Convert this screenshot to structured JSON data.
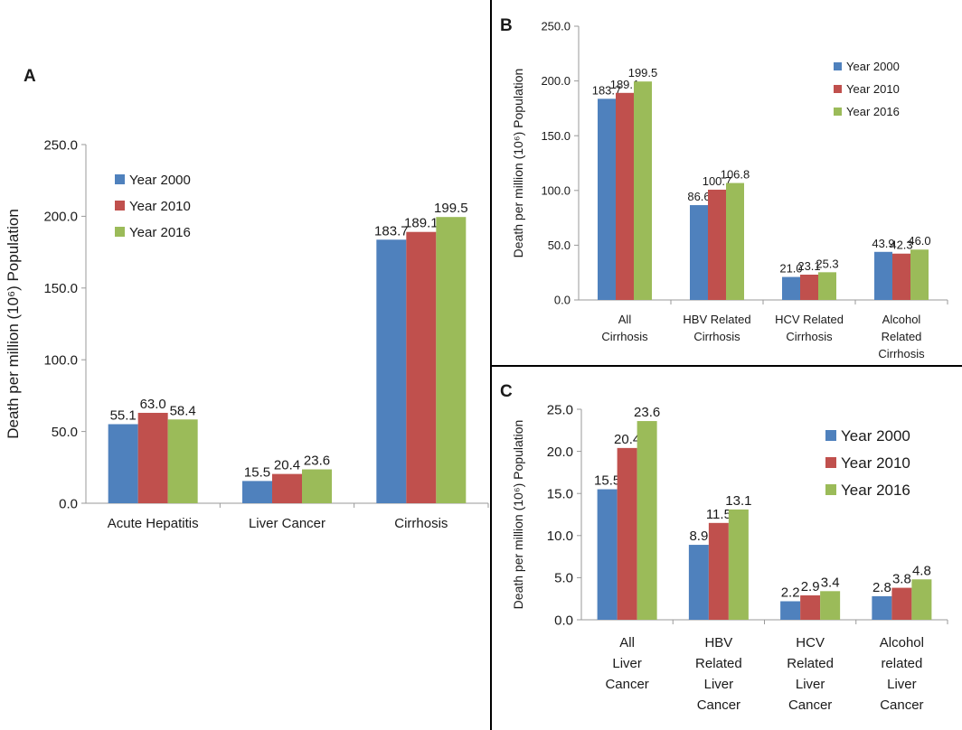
{
  "colors": {
    "year_2000": "#4F81BD",
    "year_2010": "#C0504D",
    "year_2016": "#9BBB59"
  },
  "panels": [
    {
      "letter": "A",
      "chart_data": {
        "type": "bar",
        "ylabel": "Death per million (10⁶) Population",
        "ylim": [
          0,
          250
        ],
        "yticks": [
          "0.0",
          "50.0",
          "100.0",
          "150.0",
          "200.0",
          "250.0"
        ],
        "categories": [
          "Acute Hepatitis",
          "Liver Cancer",
          "Cirrhosis"
        ],
        "series": [
          {
            "name": "Year 2000",
            "values": [
              55.1,
              15.5,
              183.7
            ],
            "labels": [
              "55.1",
              "15.5",
              "183.7"
            ]
          },
          {
            "name": "Year 2010",
            "values": [
              63.0,
              20.4,
              189.1
            ],
            "labels": [
              "63.0",
              "20.4",
              "189.1"
            ]
          },
          {
            "name": "Year 2016",
            "values": [
              58.4,
              23.6,
              199.5
            ],
            "labels": [
              "58.4",
              "23.6",
              "199.5"
            ]
          }
        ],
        "legend": "top-left",
        "grid": false
      }
    },
    {
      "letter": "B",
      "chart_data": {
        "type": "bar",
        "ylabel": "Death per million (10⁶) Population",
        "ylim": [
          0,
          250
        ],
        "yticks": [
          "0.0",
          "50.0",
          "100.0",
          "150.0",
          "200.0",
          "250.0"
        ],
        "categories": [
          "All Cirrhosis",
          "HBV Related Cirrhosis",
          "HCV Related Cirrhosis",
          "Alcohol Related Cirrhosis"
        ],
        "series": [
          {
            "name": "Year 2000",
            "values": [
              183.7,
              86.6,
              21.0,
              43.9
            ],
            "labels": [
              "183.7",
              "86.6",
              "21.0",
              "43.9"
            ]
          },
          {
            "name": "Year 2010",
            "values": [
              189.1,
              100.7,
              23.1,
              42.3
            ],
            "labels": [
              "189.1",
              "100.7",
              "23.1",
              "42.3"
            ]
          },
          {
            "name": "Year 2016",
            "values": [
              199.5,
              106.8,
              25.3,
              46.0
            ],
            "labels": [
              "199.5",
              "106.8",
              "25.3",
              "46.0"
            ]
          }
        ],
        "legend": "top-right",
        "grid": false
      }
    },
    {
      "letter": "C",
      "chart_data": {
        "type": "bar",
        "ylabel": "Death per million (10⁶) Population",
        "ylim": [
          0,
          25
        ],
        "yticks": [
          "0.0",
          "5.0",
          "10.0",
          "15.0",
          "20.0",
          "25.0"
        ],
        "categories": [
          "All Liver Cancer",
          "HBV Related Liver Cancer",
          "HCV Related Liver Cancer",
          "Alcohol related Liver Cancer"
        ],
        "series": [
          {
            "name": "Year 2000",
            "values": [
              15.5,
              8.9,
              2.2,
              2.8
            ],
            "labels": [
              "15.5",
              "8.9",
              "2.2",
              "2.8"
            ]
          },
          {
            "name": "Year 2010",
            "values": [
              20.4,
              11.5,
              2.9,
              3.8
            ],
            "labels": [
              "20.4",
              "11.5",
              "2.9",
              "3.8"
            ]
          },
          {
            "name": "Year 2016",
            "values": [
              23.6,
              13.1,
              3.4,
              4.8
            ],
            "labels": [
              "23.6",
              "13.1",
              "3.4",
              "4.8"
            ]
          }
        ],
        "legend": "top-right",
        "grid": false
      }
    }
  ]
}
